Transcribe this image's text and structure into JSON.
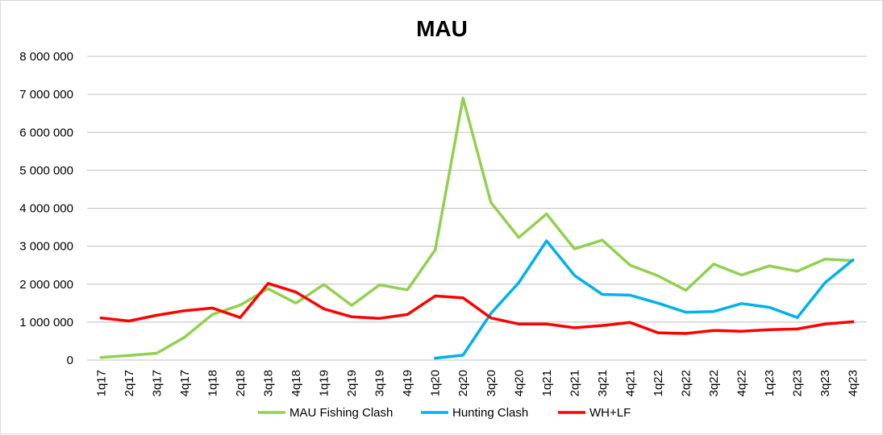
{
  "chart_data": {
    "type": "line",
    "title": "MAU",
    "xlabel": "",
    "ylabel": "",
    "ylim": [
      0,
      8000000
    ],
    "y_ticks": [
      0,
      1000000,
      2000000,
      3000000,
      4000000,
      5000000,
      6000000,
      7000000,
      8000000
    ],
    "y_tick_labels": [
      "0",
      "1 000 000",
      "2 000 000",
      "3 000 000",
      "4 000 000",
      "5 000 000",
      "6 000 000",
      "7 000 000",
      "8 000 000"
    ],
    "grid": "horizontal",
    "legend_position": "bottom",
    "categories": [
      "1q17",
      "2q17",
      "3q17",
      "4q17",
      "1q18",
      "2q18",
      "3q18",
      "4q18",
      "1q19",
      "2q19",
      "3q19",
      "4q19",
      "1q20",
      "2q20",
      "3q20",
      "4q20",
      "1q21",
      "2q21",
      "3q21",
      "4q21",
      "1q22",
      "2q22",
      "3q22",
      "4q22",
      "1q23",
      "2q23",
      "3q23",
      "4q23"
    ],
    "series": [
      {
        "name": "MAU Fishing Clash",
        "color": "#92d050",
        "values": [
          70000,
          120000,
          180000,
          600000,
          1200000,
          1450000,
          1880000,
          1500000,
          1990000,
          1440000,
          1980000,
          1850000,
          2900000,
          6900000,
          4150000,
          3230000,
          3850000,
          2930000,
          3160000,
          2500000,
          2220000,
          1840000,
          2530000,
          2240000,
          2480000,
          2340000,
          2660000,
          2620000
        ]
      },
      {
        "name": "Hunting Clash",
        "color": "#00b0f0",
        "values": [
          null,
          null,
          null,
          null,
          null,
          null,
          null,
          null,
          null,
          null,
          null,
          null,
          50000,
          130000,
          1230000,
          2040000,
          3140000,
          2230000,
          1730000,
          1710000,
          1500000,
          1260000,
          1280000,
          1490000,
          1390000,
          1120000,
          2040000,
          2640000
        ]
      },
      {
        "name": "WH+LF",
        "color": "#ff0000",
        "values": [
          1110000,
          1030000,
          1180000,
          1300000,
          1370000,
          1120000,
          2020000,
          1790000,
          1350000,
          1140000,
          1100000,
          1200000,
          1690000,
          1640000,
          1110000,
          950000,
          950000,
          850000,
          910000,
          990000,
          720000,
          700000,
          780000,
          760000,
          800000,
          820000,
          950000,
          1010000
        ]
      }
    ]
  }
}
